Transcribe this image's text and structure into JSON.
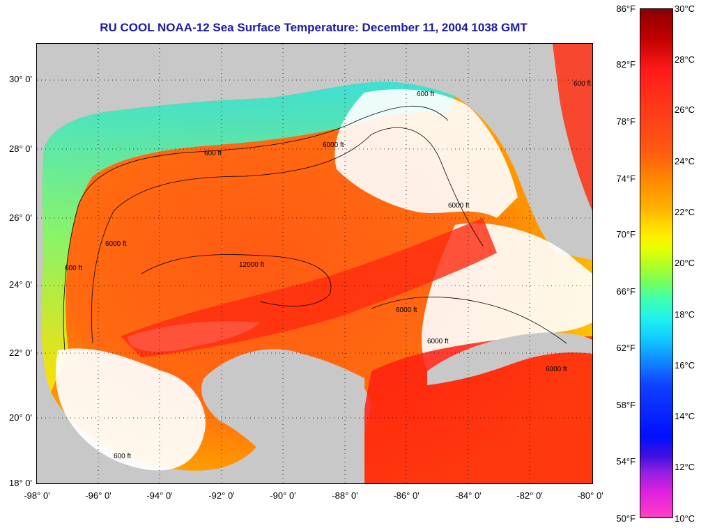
{
  "title": "RU COOL  NOAA-12  Sea Surface Temperature:  December 11, 2004 1038 GMT",
  "map": {
    "y_labels": [
      "30° 0'",
      "28° 0'",
      "26° 0'",
      "24° 0'",
      "22° 0'",
      "20° 0'",
      "18° 0'"
    ],
    "x_labels": [
      "-98° 0'",
      "-96° 0'",
      "-94° 0'",
      "-92° 0'",
      "-90° 0'",
      "-88° 0'",
      "-86° 0'",
      "-84° 0'",
      "-82° 0'",
      "-80° 0'"
    ],
    "contour_labels": [
      "600 ft",
      "6000 ft",
      "12000 ft",
      "6000 ft",
      "600 ft",
      "6000 ft",
      "600 ft",
      "6000 ft",
      "6000 ft",
      "6000 ft",
      "600 ft",
      "600 ft"
    ],
    "colors": {
      "land": "#c8c8c8",
      "warm": "#ff3c00",
      "orange": "#ff8a00",
      "cool": "#40e0f0",
      "cloud": "#ffffff"
    }
  },
  "colorbar": {
    "fahrenheit": [
      "86°F",
      "82°F",
      "78°F",
      "74°F",
      "70°F",
      "66°F",
      "62°F",
      "58°F",
      "54°F",
      "50°F"
    ],
    "celsius": [
      "30°C",
      "28°C",
      "26°C",
      "24°C",
      "22°C",
      "20°C",
      "18°C",
      "16°C",
      "14°C",
      "12°C",
      "10°C"
    ]
  }
}
